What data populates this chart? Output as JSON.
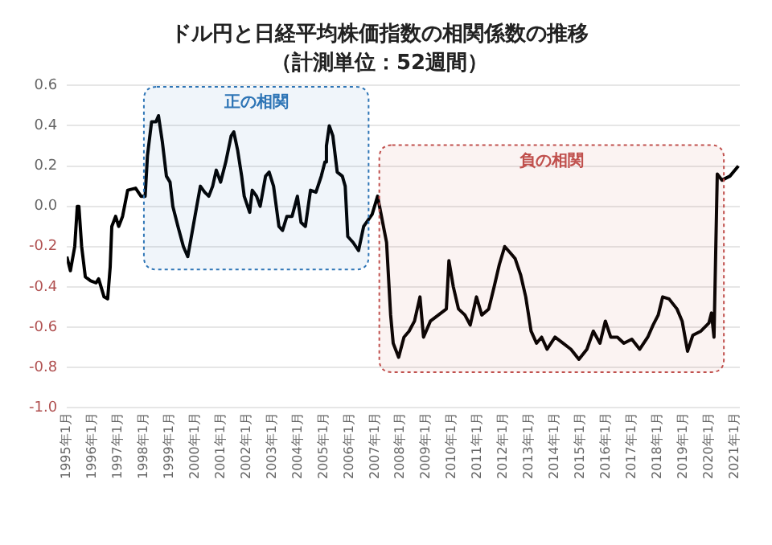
{
  "chart_data": {
    "type": "line",
    "title": "ドル円と日経平均株価指数の相関係数の推移",
    "subtitle": "（計測単位：52週間）",
    "series": [
      {
        "color": "#000000",
        "x": [
          "1995-01-01",
          "1995-02-21",
          "1995-04-22",
          "1995-05-28",
          "1995-06-20",
          "1995-07-29",
          "1995-09-20",
          "1995-12-05",
          "1996-02-21",
          "1996-03-27",
          "1996-06-13",
          "1996-08-03",
          "1996-09-09",
          "1996-10-01",
          "1996-11-25",
          "1997-01-08",
          "1997-03-02",
          "1997-05-14",
          "1997-09-05",
          "1997-11-21",
          "1998-01-19",
          "1998-02-21",
          "1998-04-19",
          "1998-06-20",
          "1998-07-26",
          "1998-09-20",
          "1998-11-17",
          "1999-01-08",
          "1999-02-17",
          "1999-04-29",
          "1999-07-15",
          "1999-09-16",
          "1999-11-07",
          "2000-01-22",
          "2000-03-13",
          "2000-05-14",
          "2000-07-11",
          "2000-09-05",
          "2000-10-26",
          "2000-12-27",
          "2001-03-09",
          "2001-05-25",
          "2001-07-01",
          "2001-08-25",
          "2001-10-22",
          "2001-11-28",
          "2002-02-14",
          "2002-03-20",
          "2002-05-21",
          "2002-07-11",
          "2002-09-27",
          "2002-11-17",
          "2003-01-19",
          "2003-04-04",
          "2003-05-25",
          "2003-07-26",
          "2003-10-08",
          "2003-12-23",
          "2004-02-14",
          "2004-04-15",
          "2004-06-27",
          "2004-09-13",
          "2004-11-28",
          "2005-01-19",
          "2005-02-10",
          "2005-03-20",
          "2005-05-10",
          "2005-07-11",
          "2005-09-23",
          "2005-11-03",
          "2005-12-09",
          "2006-02-25",
          "2006-05-10",
          "2006-07-22",
          "2006-11-21",
          "2007-02-07",
          "2007-05-10",
          "2007-06-13",
          "2007-08-10",
          "2007-09-16",
          "2007-12-02",
          "2008-02-17",
          "2008-04-29",
          "2008-07-15",
          "2008-10-01",
          "2008-11-21",
          "2009-02-28",
          "2009-06-20",
          "2009-10-11",
          "2009-11-17",
          "2010-01-19",
          "2010-04-01",
          "2010-07-01",
          "2010-09-16",
          "2010-12-13",
          "2011-02-28",
          "2011-06-05",
          "2011-08-21",
          "2011-11-03",
          "2012-01-19",
          "2012-04-04",
          "2012-06-16",
          "2012-09-02",
          "2012-11-14",
          "2013-01-29",
          "2013-04-15",
          "2013-06-27",
          "2013-09-13",
          "2014-01-04",
          "2014-04-26",
          "2014-08-17",
          "2014-12-09",
          "2015-04-01",
          "2015-07-01",
          "2015-10-04",
          "2015-12-20",
          "2016-03-05",
          "2016-06-09",
          "2016-09-09",
          "2017-01-01",
          "2017-04-22",
          "2017-08-14",
          "2017-10-29",
          "2018-01-11",
          "2018-03-13",
          "2018-06-13",
          "2018-10-04",
          "2018-12-16",
          "2019-03-02",
          "2019-05-17",
          "2019-09-09",
          "2020-01-01",
          "2020-02-07",
          "2020-03-13",
          "2020-04-29",
          "2020-07-04",
          "2020-10-26",
          "2021-02-25"
        ],
        "values": [
          -0.25,
          -0.32,
          -0.2,
          0.0,
          0.0,
          -0.2,
          -0.35,
          -0.37,
          -0.38,
          -0.36,
          -0.45,
          -0.46,
          -0.3,
          -0.1,
          -0.05,
          -0.1,
          -0.05,
          0.08,
          0.09,
          0.05,
          0.05,
          0.25,
          0.42,
          0.42,
          0.45,
          0.32,
          0.15,
          0.12,
          0.0,
          -0.1,
          -0.2,
          -0.25,
          -0.15,
          0.0,
          0.1,
          0.07,
          0.05,
          0.1,
          0.18,
          0.12,
          0.22,
          0.35,
          0.37,
          0.28,
          0.15,
          0.05,
          -0.03,
          0.08,
          0.05,
          0.0,
          0.15,
          0.17,
          0.1,
          -0.1,
          -0.12,
          -0.05,
          -0.05,
          0.05,
          -0.08,
          -0.1,
          0.08,
          0.07,
          0.15,
          0.22,
          0.3,
          0.4,
          0.35,
          0.17,
          0.15,
          0.1,
          -0.15,
          -0.18,
          -0.22,
          -0.1,
          -0.04,
          0.05,
          -0.12,
          -0.18,
          -0.54,
          -0.68,
          -0.75,
          -0.65,
          -0.62,
          -0.57,
          -0.45,
          -0.65,
          -0.57,
          -0.54,
          -0.51,
          -0.27,
          -0.4,
          -0.51,
          -0.54,
          -0.59,
          -0.45,
          -0.54,
          -0.51,
          -0.4,
          -0.29,
          -0.2,
          -0.23,
          -0.26,
          -0.34,
          -0.45,
          -0.62,
          -0.68,
          -0.65,
          -0.71,
          -0.65,
          -0.68,
          -0.71,
          -0.76,
          -0.71,
          -0.62,
          -0.68,
          -0.57,
          -0.65,
          -0.65,
          -0.68,
          -0.66,
          -0.71,
          -0.65,
          -0.59,
          -0.54,
          -0.45,
          -0.46,
          -0.51,
          -0.57,
          -0.72,
          -0.64,
          -0.62,
          -0.58,
          -0.53,
          -0.65,
          0.16,
          0.13,
          0.15,
          0.2
        ]
      }
    ],
    "xlim": [
      "1995-01-01",
      "2021-03-15"
    ],
    "xticks": [
      {
        "value": "1995-01",
        "label": "1995年1月"
      },
      {
        "value": "1996-01",
        "label": "1996年1月"
      },
      {
        "value": "1997-01",
        "label": "1997年1月"
      },
      {
        "value": "1998-01",
        "label": "1998年1月"
      },
      {
        "value": "1999-01",
        "label": "1999年1月"
      },
      {
        "value": "2000-01",
        "label": "2000年1月"
      },
      {
        "value": "2001-01",
        "label": "2001年1月"
      },
      {
        "value": "2002-01",
        "label": "2002年1月"
      },
      {
        "value": "2003-01",
        "label": "2003年1月"
      },
      {
        "value": "2004-01",
        "label": "2004年1月"
      },
      {
        "value": "2005-01",
        "label": "2005年1月"
      },
      {
        "value": "2006-01",
        "label": "2006年1月"
      },
      {
        "value": "2007-01",
        "label": "2007年1月"
      },
      {
        "value": "2008-01",
        "label": "2008年1月"
      },
      {
        "value": "2009-01",
        "label": "2009年1月"
      },
      {
        "value": "2010-01",
        "label": "2010年1月"
      },
      {
        "value": "2011-01",
        "label": "2011年1月"
      },
      {
        "value": "2012-01",
        "label": "2012年1月"
      },
      {
        "value": "2013-01",
        "label": "2013年1月"
      },
      {
        "value": "2014-01",
        "label": "2014年1月"
      },
      {
        "value": "2015-01",
        "label": "2015年1月"
      },
      {
        "value": "2016-01",
        "label": "2016年1月"
      },
      {
        "value": "2017-01",
        "label": "2017年1月"
      },
      {
        "value": "2018-01",
        "label": "2018年1月"
      },
      {
        "value": "2019-01",
        "label": "2019年1月"
      },
      {
        "value": "2020-01",
        "label": "2020年1月"
      },
      {
        "value": "2021-01",
        "label": "2021年1月"
      }
    ],
    "ylim": [
      -1.0,
      0.6
    ],
    "yticks": [
      {
        "value": -1.0,
        "label": "-1.0"
      },
      {
        "value": -0.8,
        "label": "-0.8"
      },
      {
        "value": -0.6,
        "label": "-0.6"
      },
      {
        "value": -0.4,
        "label": "-0.4"
      },
      {
        "value": -0.2,
        "label": "-0.2"
      },
      {
        "value": 0.0,
        "label": "0.0"
      },
      {
        "value": 0.2,
        "label": "0.2"
      },
      {
        "value": 0.4,
        "label": "0.4"
      },
      {
        "value": 0.6,
        "label": "0.6"
      }
    ],
    "bands": [
      {
        "axis": "x",
        "from": "1998-01",
        "to": "2006-10",
        "label": "正の相関",
        "color": "#2e75b6"
      },
      {
        "axis": "x",
        "from": "2007-03",
        "to": "2020-08",
        "label": "負の相関",
        "color": "#c0504d"
      }
    ],
    "grid": "y",
    "legend": false,
    "marker": "none",
    "line_style": "solid"
  }
}
